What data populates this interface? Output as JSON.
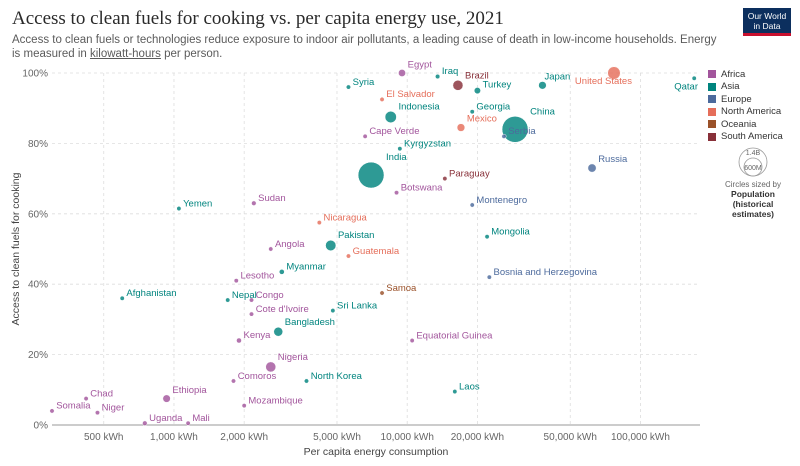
{
  "header": {
    "title": "Access to clean fuels for cooking vs. per capita energy use, 2021",
    "subtitle_before": "Access to clean fuels or technologies reduce exposure to indoor air pollutants, a leading cause of death in low-income households. Energy is measured in ",
    "subtitle_link": "kilowatt-hours",
    "subtitle_after": " per person.",
    "logo_line1": "Our World",
    "logo_line2": "in Data"
  },
  "legend": {
    "items": [
      {
        "label": "Africa",
        "color": "#a2559c"
      },
      {
        "label": "Asia",
        "color": "#00847e"
      },
      {
        "label": "Europe",
        "color": "#4c6a9c"
      },
      {
        "label": "North America",
        "color": "#e56e5a"
      },
      {
        "label": "Oceania",
        "color": "#9a5129"
      },
      {
        "label": "South America",
        "color": "#883039"
      }
    ],
    "size_max": "1.4B",
    "size_min": "600M",
    "size_caption": "Circles sized by",
    "size_var": "Population",
    "size_var_note": "(historical estimates)"
  },
  "chart_data": {
    "type": "scatter",
    "title": "Access to clean fuels for cooking vs. per capita energy use, 2021",
    "xlabel": "Per capita energy consumption",
    "ylabel": "Access to clean fuels for cooking",
    "x_scale": "log",
    "xlim": [
      300,
      180000
    ],
    "ylim": [
      0,
      100
    ],
    "x_ticks": [
      {
        "value": 500,
        "label": "500 kWh"
      },
      {
        "value": 1000,
        "label": "1,000 kWh"
      },
      {
        "value": 2000,
        "label": "2,000 kWh"
      },
      {
        "value": 5000,
        "label": "5,000 kWh"
      },
      {
        "value": 10000,
        "label": "10,000 kWh"
      },
      {
        "value": 20000,
        "label": "20,000 kWh"
      },
      {
        "value": 50000,
        "label": "50,000 kWh"
      },
      {
        "value": 100000,
        "label": "100,000 kWh"
      }
    ],
    "y_ticks": [
      {
        "value": 0,
        "label": "0%"
      },
      {
        "value": 20,
        "label": "20%"
      },
      {
        "value": 40,
        "label": "40%"
      },
      {
        "value": 60,
        "label": "60%"
      },
      {
        "value": 80,
        "label": "80%"
      },
      {
        "value": 100,
        "label": "100%"
      }
    ],
    "grid": true,
    "legend_position": "right",
    "points": [
      {
        "name": "China",
        "region": "Asia",
        "x": 29000,
        "y": 84,
        "pop": 1420
      },
      {
        "name": "India",
        "region": "Asia",
        "x": 7000,
        "y": 71,
        "pop": 1410
      },
      {
        "name": "Indonesia",
        "region": "Asia",
        "x": 8500,
        "y": 87.5,
        "pop": 275
      },
      {
        "name": "Pakistan",
        "region": "Asia",
        "x": 4700,
        "y": 51,
        "pop": 230
      },
      {
        "name": "Bangladesh",
        "region": "Asia",
        "x": 2800,
        "y": 26.5,
        "pop": 170
      },
      {
        "name": "Nigeria",
        "region": "Africa",
        "x": 2600,
        "y": 16.5,
        "pop": 215
      },
      {
        "name": "Ethiopia",
        "region": "Africa",
        "x": 930,
        "y": 7.5,
        "pop": 120
      },
      {
        "name": "United States",
        "region": "North America",
        "x": 77000,
        "y": 100,
        "pop": 335
      },
      {
        "name": "Brazil",
        "region": "South America",
        "x": 16500,
        "y": 96.5,
        "pop": 215
      },
      {
        "name": "Mexico",
        "region": "North America",
        "x": 17000,
        "y": 84.5,
        "pop": 128
      },
      {
        "name": "Japan",
        "region": "Asia",
        "x": 38000,
        "y": 96.5,
        "pop": 125
      },
      {
        "name": "Egypt",
        "region": "Africa",
        "x": 9500,
        "y": 100,
        "pop": 110
      },
      {
        "name": "Turkey",
        "region": "Asia",
        "x": 20000,
        "y": 95,
        "pop": 85
      },
      {
        "name": "Iraq",
        "region": "Asia",
        "x": 13500,
        "y": 99,
        "pop": 44
      },
      {
        "name": "Qatar",
        "region": "Asia",
        "x": 170000,
        "y": 98.5,
        "pop": 3
      },
      {
        "name": "Syria",
        "region": "Asia",
        "x": 5600,
        "y": 96,
        "pop": 21
      },
      {
        "name": "El Salvador",
        "region": "North America",
        "x": 7800,
        "y": 92.5,
        "pop": 6.3
      },
      {
        "name": "Georgia",
        "region": "Asia",
        "x": 19000,
        "y": 89,
        "pop": 3.7
      },
      {
        "name": "Cape Verde",
        "region": "Africa",
        "x": 6600,
        "y": 82,
        "pop": 0.6
      },
      {
        "name": "Serbia",
        "region": "Europe",
        "x": 26000,
        "y": 82,
        "pop": 7
      },
      {
        "name": "Kyrgyzstan",
        "region": "Asia",
        "x": 9300,
        "y": 78.5,
        "pop": 6.7
      },
      {
        "name": "Russia",
        "region": "Europe",
        "x": 62000,
        "y": 73,
        "pop": 145
      },
      {
        "name": "Paraguay",
        "region": "South America",
        "x": 14500,
        "y": 70,
        "pop": 6.7
      },
      {
        "name": "Botswana",
        "region": "Africa",
        "x": 9000,
        "y": 66,
        "pop": 2.6
      },
      {
        "name": "Montenegro",
        "region": "Europe",
        "x": 19000,
        "y": 62.5,
        "pop": 0.6
      },
      {
        "name": "Yemen",
        "region": "Asia",
        "x": 1050,
        "y": 61.5,
        "pop": 33
      },
      {
        "name": "Sudan",
        "region": "Africa",
        "x": 2200,
        "y": 63,
        "pop": 46
      },
      {
        "name": "Nicaragua",
        "region": "North America",
        "x": 4200,
        "y": 57.5,
        "pop": 6.9
      },
      {
        "name": "Mongolia",
        "region": "Asia",
        "x": 22000,
        "y": 53.5,
        "pop": 3.4
      },
      {
        "name": "Angola",
        "region": "Africa",
        "x": 2600,
        "y": 50,
        "pop": 35
      },
      {
        "name": "Guatemala",
        "region": "North America",
        "x": 5600,
        "y": 48,
        "pop": 17.6
      },
      {
        "name": "Myanmar",
        "region": "Asia",
        "x": 2900,
        "y": 43.5,
        "pop": 54
      },
      {
        "name": "Lesotho",
        "region": "Africa",
        "x": 1850,
        "y": 41,
        "pop": 2.3
      },
      {
        "name": "Bosnia and Herzegovina",
        "region": "Europe",
        "x": 22500,
        "y": 42,
        "pop": 3.3
      },
      {
        "name": "Samoa",
        "region": "Oceania",
        "x": 7800,
        "y": 37.5,
        "pop": 0.2
      },
      {
        "name": "Afghanistan",
        "region": "Asia",
        "x": 600,
        "y": 36,
        "pop": 40
      },
      {
        "name": "Nepal",
        "region": "Asia",
        "x": 1700,
        "y": 35.5,
        "pop": 30
      },
      {
        "name": "Congo",
        "region": "Africa",
        "x": 2150,
        "y": 35.5,
        "pop": 5.8
      },
      {
        "name": "Sri Lanka",
        "region": "Asia",
        "x": 4800,
        "y": 32.5,
        "pop": 22
      },
      {
        "name": "Cote d'Ivoire",
        "region": "Africa",
        "x": 2150,
        "y": 31.5,
        "pop": 27
      },
      {
        "name": "Equatorial Guinea",
        "region": "Africa",
        "x": 10500,
        "y": 24,
        "pop": 1.6
      },
      {
        "name": "Kenya",
        "region": "Africa",
        "x": 1900,
        "y": 24,
        "pop": 54
      },
      {
        "name": "North Korea",
        "region": "Asia",
        "x": 3700,
        "y": 12.5,
        "pop": 26
      },
      {
        "name": "Comoros",
        "region": "Africa",
        "x": 1800,
        "y": 12.5,
        "pop": 0.8
      },
      {
        "name": "Laos",
        "region": "Asia",
        "x": 16000,
        "y": 9.5,
        "pop": 7.5
      },
      {
        "name": "Chad",
        "region": "Africa",
        "x": 420,
        "y": 7.5,
        "pop": 17.7
      },
      {
        "name": "Mozambique",
        "region": "Africa",
        "x": 2000,
        "y": 5.5,
        "pop": 32
      },
      {
        "name": "Somalia",
        "region": "Africa",
        "x": 300,
        "y": 4,
        "pop": 17
      },
      {
        "name": "Niger",
        "region": "Africa",
        "x": 470,
        "y": 3.5,
        "pop": 25
      },
      {
        "name": "Uganda",
        "region": "Africa",
        "x": 750,
        "y": 0.5,
        "pop": 47
      },
      {
        "name": "Mali",
        "region": "Africa",
        "x": 1150,
        "y": 0.5,
        "pop": 22
      }
    ]
  }
}
